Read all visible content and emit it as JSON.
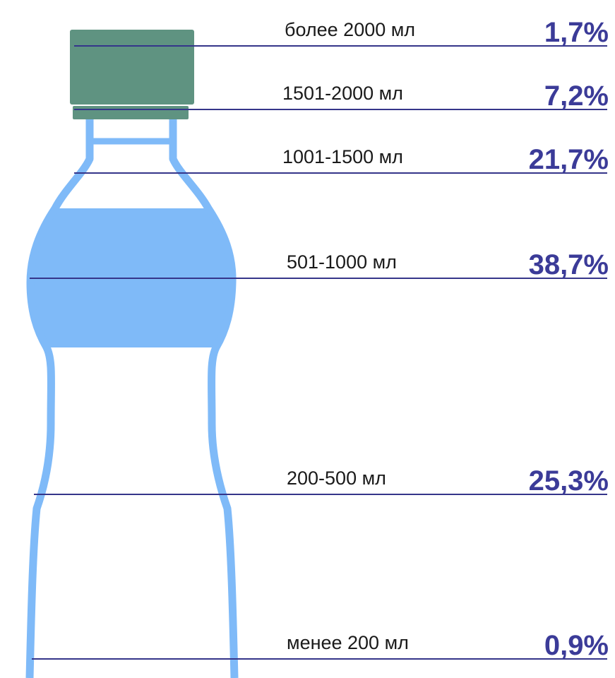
{
  "levels": [
    {
      "label": "более 2000 мл",
      "share": "1,7%"
    },
    {
      "label": "1501-2000 мл",
      "share": "7,2%"
    },
    {
      "label": "1001-1500 мл",
      "share": "21,7%"
    },
    {
      "label": "501-1000 мл",
      "share": "38,7%"
    },
    {
      "label": "200-500 мл",
      "share": "25,3%"
    },
    {
      "label": "менее 200 мл",
      "share": "0,9%"
    }
  ]
}
